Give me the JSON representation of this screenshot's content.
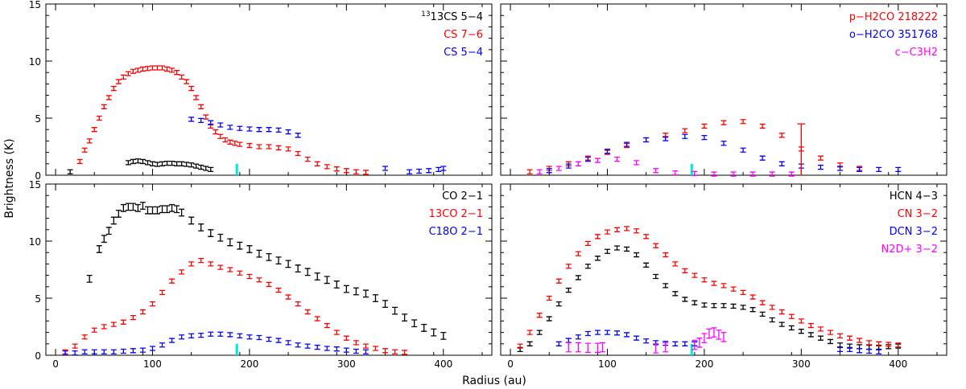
{
  "figure": {
    "ylabel": "Brightness (K)",
    "xlabel": "Radius (au)"
  },
  "colors": {
    "black": "#000000",
    "red": "#ff0000",
    "blue": "#0000ff",
    "magenta": "#ff00ff",
    "cyan": "#00e5e5"
  },
  "chart_data": [
    {
      "type": "scatter",
      "panel": "top-left",
      "xlim": [
        -10,
        450
      ],
      "ylim": [
        0,
        15
      ],
      "xticks": [
        0,
        100,
        200,
        300,
        400
      ],
      "yticks": [
        0,
        5,
        10,
        15
      ],
      "show_xtick_labels": false,
      "show_ytick_labels": true,
      "marker_x": 187,
      "marker_height": 1,
      "legend": [
        "13CS 5−4",
        "CS 7−6",
        "CS 5−4"
      ],
      "series": [
        {
          "name": "13CS 5−4",
          "color": "black",
          "err": 0.1,
          "x": [
            15,
            75,
            80,
            85,
            90,
            95,
            100,
            105,
            110,
            115,
            120,
            125,
            130,
            135,
            140,
            145,
            150,
            155,
            160
          ],
          "y": [
            0.3,
            1.1,
            1.2,
            1.25,
            1.2,
            1.1,
            1.0,
            0.95,
            1.0,
            1.05,
            1.05,
            1.0,
            1.0,
            0.95,
            0.9,
            0.8,
            0.7,
            0.6,
            0.5
          ]
        },
        {
          "name": "CS 7−6",
          "color": "red",
          "err": 0.12,
          "x": [
            25,
            30,
            35,
            40,
            45,
            50,
            55,
            60,
            65,
            70,
            75,
            80,
            85,
            90,
            95,
            100,
            105,
            110,
            115,
            120,
            125,
            130,
            135,
            140,
            145,
            150,
            155,
            160,
            165,
            170,
            175,
            180,
            185,
            190,
            200,
            210,
            220,
            230,
            240,
            250,
            260,
            270,
            280,
            290,
            300,
            310,
            320
          ],
          "y": [
            1.2,
            2.2,
            3.0,
            4.0,
            5.0,
            6.0,
            6.8,
            7.6,
            8.2,
            8.6,
            8.9,
            9.1,
            9.2,
            9.3,
            9.35,
            9.4,
            9.4,
            9.4,
            9.3,
            9.2,
            9.0,
            8.6,
            8.2,
            7.6,
            6.8,
            6.0,
            5.1,
            4.3,
            3.8,
            3.4,
            3.1,
            2.9,
            2.8,
            2.7,
            2.6,
            2.5,
            2.5,
            2.4,
            2.3,
            1.9,
            1.4,
            1.0,
            0.75,
            0.55,
            0.4,
            0.3,
            0.25
          ]
        },
        {
          "name": "CS 5−4",
          "color": "blue",
          "err": 0.1,
          "x": [
            140,
            150,
            160,
            170,
            180,
            190,
            200,
            210,
            220,
            230,
            240,
            250,
            340,
            365,
            375,
            385,
            395,
            400
          ],
          "y": [
            4.9,
            4.8,
            4.6,
            4.4,
            4.2,
            4.1,
            4.05,
            4.0,
            4.0,
            3.95,
            3.8,
            3.5,
            0.6,
            0.3,
            0.35,
            0.4,
            0.5,
            0.6
          ]
        }
      ]
    },
    {
      "type": "scatter",
      "panel": "top-right",
      "xlim": [
        -10,
        450
      ],
      "ylim": [
        0,
        15
      ],
      "xticks": [
        0,
        100,
        200,
        300,
        400
      ],
      "yticks": [
        0,
        5,
        10,
        15
      ],
      "show_xtick_labels": false,
      "show_ytick_labels": false,
      "marker_x": 187,
      "marker_height": 1,
      "legend": [
        "p−H2CO 218222",
        "o−H2CO 351768",
        "c−C3H2"
      ],
      "series": [
        {
          "name": "p−H2CO 218222",
          "color": "red",
          "err": 0.1,
          "x": [
            20,
            40,
            60,
            80,
            100,
            120,
            140,
            160,
            180,
            200,
            220,
            240,
            260,
            280,
            300,
            320,
            340,
            360
          ],
          "y": [
            0.3,
            0.6,
            1.0,
            1.5,
            2.0,
            2.6,
            3.1,
            3.5,
            3.9,
            4.3,
            4.6,
            4.7,
            4.3,
            3.5,
            2.3,
            1.5,
            0.9,
            0.6
          ]
        },
        {
          "name": "o−H2CO 351768",
          "color": "blue",
          "err": 0.12,
          "x": [
            40,
            60,
            80,
            100,
            120,
            140,
            160,
            180,
            200,
            220,
            240,
            260,
            280,
            300,
            320,
            340,
            360,
            380,
            400
          ],
          "y": [
            0.4,
            0.8,
            1.4,
            2.1,
            2.7,
            3.1,
            3.2,
            3.4,
            3.3,
            2.8,
            2.2,
            1.5,
            1.0,
            0.8,
            0.7,
            0.6,
            0.5,
            0.5,
            0.5
          ]
        },
        {
          "name": "c−C3H2",
          "color": "magenta",
          "err": 0.08,
          "x": [
            30,
            50,
            70,
            90,
            110,
            130,
            150,
            170,
            190,
            210,
            230,
            250,
            270,
            290
          ],
          "y": [
            0.3,
            0.6,
            1.0,
            1.3,
            1.4,
            1.1,
            0.4,
            0.2,
            0.15,
            0.1,
            0.1,
            0.1,
            0.1,
            0.1
          ]
        }
      ],
      "error_spike": {
        "x": 300,
        "y": 4.5,
        "color": "red"
      }
    },
    {
      "type": "scatter",
      "panel": "bottom-left",
      "xlim": [
        -10,
        450
      ],
      "ylim": [
        0,
        15
      ],
      "xticks": [
        0,
        100,
        200,
        300,
        400
      ],
      "yticks": [
        0,
        5,
        10,
        15
      ],
      "show_xtick_labels": true,
      "show_ytick_labels": true,
      "marker_x": 187,
      "marker_height": 1,
      "legend": [
        "CO 2−1",
        "13CO 2−1",
        "C18O 2−1"
      ],
      "series": [
        {
          "name": "CO 2−1",
          "color": "black",
          "err": 0.3,
          "x": [
            35,
            45,
            50,
            55,
            60,
            65,
            70,
            75,
            80,
            85,
            90,
            95,
            100,
            105,
            110,
            115,
            120,
            125,
            130,
            140,
            150,
            160,
            170,
            180,
            190,
            200,
            210,
            220,
            230,
            240,
            250,
            260,
            270,
            280,
            290,
            300,
            310,
            320,
            330,
            340,
            350,
            360,
            370,
            380,
            390,
            400
          ],
          "y": [
            6.7,
            9.3,
            10.2,
            10.9,
            11.8,
            12.4,
            12.9,
            13.0,
            13.0,
            12.9,
            13.1,
            12.7,
            12.7,
            12.7,
            12.8,
            12.8,
            12.9,
            12.8,
            12.5,
            11.8,
            11.2,
            10.7,
            10.3,
            9.9,
            9.6,
            9.3,
            8.9,
            8.6,
            8.3,
            8.0,
            7.6,
            7.3,
            6.9,
            6.6,
            6.2,
            5.8,
            5.6,
            5.4,
            5.0,
            4.5,
            3.9,
            3.3,
            2.8,
            2.4,
            2.0,
            1.7
          ]
        },
        {
          "name": "13CO 2−1",
          "color": "red",
          "err": 0.15,
          "x": [
            10,
            20,
            30,
            40,
            50,
            60,
            70,
            80,
            90,
            100,
            110,
            120,
            130,
            140,
            150,
            160,
            170,
            180,
            190,
            200,
            210,
            220,
            230,
            240,
            250,
            260,
            270,
            280,
            290,
            300,
            310,
            320,
            330,
            340,
            350,
            360
          ],
          "y": [
            0.3,
            0.8,
            1.6,
            2.2,
            2.5,
            2.7,
            2.9,
            3.3,
            3.8,
            4.5,
            5.5,
            6.5,
            7.3,
            8.0,
            8.3,
            8.0,
            7.7,
            7.5,
            7.2,
            6.9,
            6.6,
            6.2,
            5.7,
            5.1,
            4.5,
            3.8,
            3.2,
            2.6,
            2.0,
            1.5,
            1.1,
            0.8,
            0.6,
            0.4,
            0.3,
            0.25
          ]
        },
        {
          "name": "C18O 2−1",
          "color": "blue",
          "err": 0.1,
          "x": [
            10,
            20,
            30,
            40,
            50,
            60,
            70,
            80,
            90,
            100,
            110,
            120,
            130,
            140,
            150,
            160,
            170,
            180,
            190,
            200,
            210,
            220,
            230,
            240,
            250,
            260,
            270,
            280,
            290,
            300,
            310,
            320
          ],
          "y": [
            0.2,
            0.2,
            0.3,
            0.3,
            0.3,
            0.3,
            0.35,
            0.4,
            0.45,
            0.6,
            0.9,
            1.3,
            1.6,
            1.7,
            1.75,
            1.85,
            1.85,
            1.8,
            1.7,
            1.6,
            1.55,
            1.4,
            1.3,
            1.1,
            0.9,
            0.8,
            0.7,
            0.6,
            0.55,
            0.45,
            0.35,
            0.3
          ]
        }
      ]
    },
    {
      "type": "scatter",
      "panel": "bottom-right",
      "xlim": [
        -10,
        450
      ],
      "ylim": [
        0,
        15
      ],
      "xticks": [
        0,
        100,
        200,
        300,
        400
      ],
      "yticks": [
        0,
        5,
        10,
        15
      ],
      "show_xtick_labels": true,
      "show_ytick_labels": false,
      "marker_x": 187,
      "marker_height": 1,
      "legend": [
        "HCN 4−3",
        "CN 3−2",
        "DCN 3−2",
        "N2D+ 3−2"
      ],
      "series": [
        {
          "name": "HCN 4−3",
          "color": "black",
          "err": 0.12,
          "x": [
            10,
            20,
            30,
            40,
            50,
            60,
            70,
            80,
            90,
            100,
            110,
            120,
            130,
            140,
            150,
            160,
            170,
            180,
            190,
            200,
            210,
            220,
            230,
            240,
            250,
            260,
            270,
            280,
            290,
            300,
            310,
            320,
            330,
            340,
            350,
            360,
            370,
            380,
            390,
            400
          ],
          "y": [
            0.5,
            1.0,
            2.0,
            3.2,
            4.5,
            5.7,
            6.8,
            7.8,
            8.5,
            9.1,
            9.4,
            9.3,
            8.8,
            7.9,
            6.9,
            6.1,
            5.4,
            4.9,
            4.6,
            4.4,
            4.35,
            4.35,
            4.3,
            4.2,
            4.0,
            3.6,
            3.1,
            2.7,
            2.4,
            2.1,
            1.8,
            1.5,
            1.2,
            0.9,
            0.8,
            0.75,
            0.7,
            0.7,
            0.75,
            0.8
          ]
        },
        {
          "name": "CN 3−2",
          "color": "red",
          "err": 0.15,
          "x": [
            10,
            20,
            30,
            40,
            50,
            60,
            70,
            80,
            90,
            100,
            110,
            120,
            130,
            140,
            150,
            160,
            170,
            180,
            190,
            200,
            210,
            220,
            230,
            240,
            250,
            260,
            270,
            280,
            290,
            300,
            310,
            320,
            330,
            340,
            350,
            360,
            370,
            380,
            390,
            400
          ],
          "y": [
            0.8,
            2.0,
            3.5,
            5.0,
            6.5,
            7.8,
            8.9,
            9.8,
            10.4,
            10.8,
            11.0,
            11.1,
            10.9,
            10.4,
            9.6,
            8.8,
            8.0,
            7.4,
            7.0,
            6.6,
            6.3,
            6.1,
            5.8,
            5.5,
            5.1,
            4.6,
            4.2,
            3.8,
            3.4,
            3.0,
            2.6,
            2.3,
            2.0,
            1.7,
            1.5,
            1.3,
            1.1,
            1.0,
            0.95,
            0.9
          ]
        },
        {
          "name": "DCN 3−2",
          "color": "blue",
          "err": 0.1,
          "x": [
            50,
            60,
            70,
            80,
            90,
            100,
            110,
            120,
            130,
            140,
            150,
            160,
            170,
            180,
            190,
            340,
            350,
            360,
            370,
            380
          ],
          "y": [
            1.0,
            1.3,
            1.6,
            1.9,
            2.0,
            2.0,
            1.95,
            1.8,
            1.5,
            1.25,
            1.1,
            1.05,
            1.0,
            1.0,
            1.0,
            0.5,
            0.5,
            0.4,
            0.35,
            0.3
          ]
        },
        {
          "name": "N2D+ 3−2",
          "color": "magenta",
          "err": 0.4,
          "x": [
            60,
            70,
            80,
            90,
            95,
            150,
            160,
            190,
            195,
            200,
            205,
            210,
            215,
            220
          ],
          "y": [
            0.7,
            0.7,
            0.65,
            0.65,
            0.7,
            0.6,
            0.7,
            0.9,
            1.1,
            1.5,
            1.9,
            2.0,
            1.8,
            1.6
          ]
        }
      ]
    }
  ]
}
